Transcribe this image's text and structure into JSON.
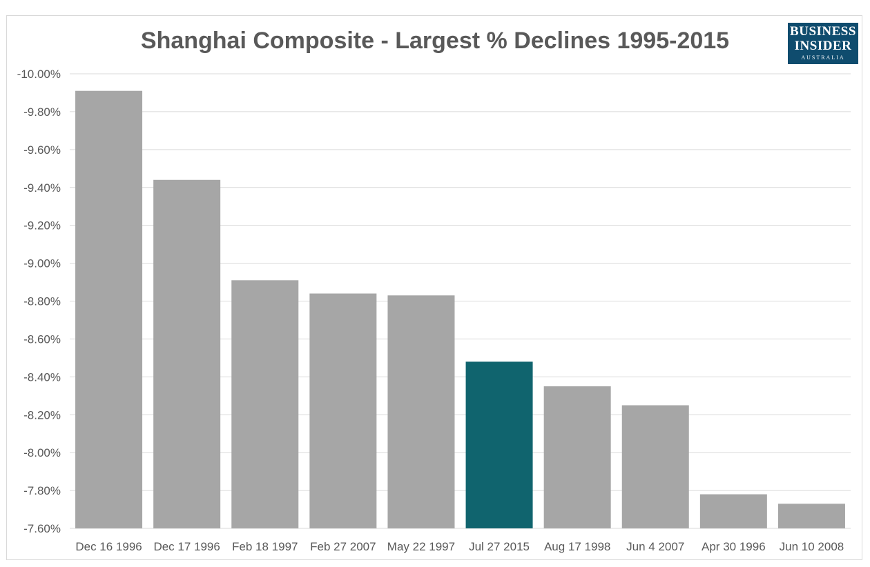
{
  "colors": {
    "bar": "#a6a6a6",
    "highlight": "#10646e",
    "grid": "#d9d9d9",
    "text": "#595959"
  },
  "logo": {
    "line1": "BUSINESS",
    "line2": "INSIDER",
    "line3": "AUSTRALIA"
  },
  "chart_data": {
    "type": "bar",
    "title": "Shanghai Composite - Largest % Declines 1995-2015",
    "xlabel": "",
    "ylabel": "",
    "grid": true,
    "ylim": [
      -7.6,
      -10.0
    ],
    "yticks": [
      -10.0,
      -9.8,
      -9.6,
      -9.4,
      -9.2,
      -9.0,
      -8.8,
      -8.6,
      -8.4,
      -8.2,
      -8.0,
      -7.8,
      -7.6
    ],
    "ytick_labels": [
      "-10.00%",
      "-9.80%",
      "-9.60%",
      "-9.40%",
      "-9.20%",
      "-9.00%",
      "-8.80%",
      "-8.60%",
      "-8.40%",
      "-8.20%",
      "-8.00%",
      "-7.80%",
      "-7.60%"
    ],
    "categories": [
      "Dec 16 1996",
      "Dec 17 1996",
      "Feb 18 1997",
      "Feb 27 2007",
      "May 22 1997",
      "Jul 27 2015",
      "Aug 17 1998",
      "Jun 4 2007",
      "Apr 30 1996",
      "Jun 10 2008"
    ],
    "values": [
      -9.91,
      -9.44,
      -8.91,
      -8.84,
      -8.83,
      -8.48,
      -8.35,
      -8.25,
      -7.78,
      -7.73
    ],
    "highlight_index": 5
  }
}
